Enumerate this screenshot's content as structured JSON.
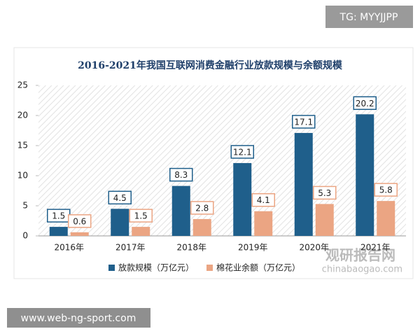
{
  "badges": {
    "top": "TG: MYYJJPP",
    "bottom": "www.web-ng-sport.com"
  },
  "watermark": {
    "name": "观研报告网",
    "url": "chinabaogao.com"
  },
  "chart_data": {
    "type": "bar",
    "title": "2016-2021年我国互联网消费金融行业放款规模与余额规模",
    "categories": [
      "2016年",
      "2017年",
      "2018年",
      "2019年",
      "2020年",
      "2021年"
    ],
    "series": [
      {
        "name": "放款规模（万亿元）",
        "color": "#1f5f8b",
        "values": [
          1.5,
          4.5,
          8.3,
          12.1,
          17.1,
          20.2
        ]
      },
      {
        "name": "棉花业余额（万亿元）",
        "color": "#eba583",
        "values": [
          0.6,
          1.5,
          2.8,
          4.1,
          5.3,
          5.8
        ]
      }
    ],
    "ylim": [
      0,
      25
    ],
    "yticks": [
      0,
      5,
      10,
      15,
      20,
      25
    ],
    "legend": "bottom"
  }
}
